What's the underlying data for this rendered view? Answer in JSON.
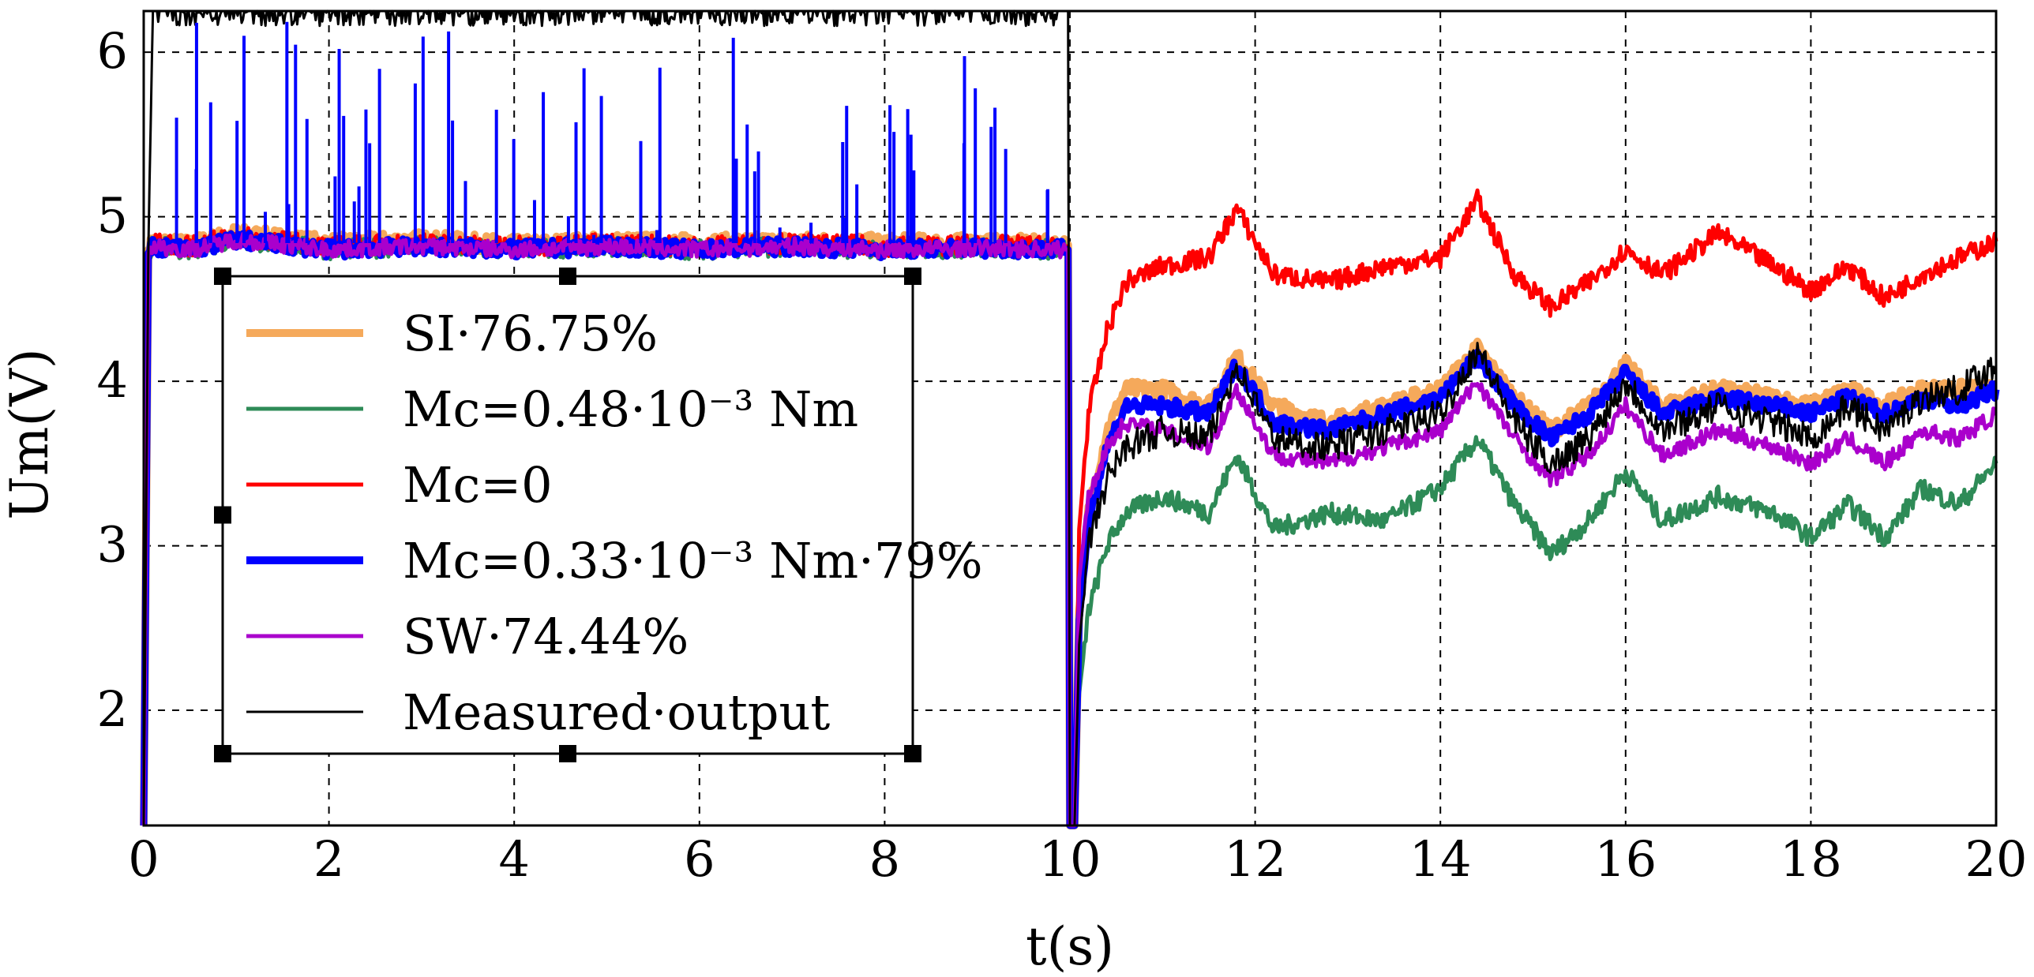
{
  "chart_data": {
    "type": "line",
    "title": "",
    "xlabel": "t(s)",
    "ylabel": "Um(V)",
    "xlim": [
      0,
      20
    ],
    "ylim": [
      1.3,
      6.25
    ],
    "grid": true,
    "x_ticks": [
      "0",
      "2",
      "4",
      "6",
      "8",
      "10",
      "12",
      "14",
      "16",
      "18",
      "20"
    ],
    "y_ticks": [
      "2",
      "3",
      "4",
      "5",
      "6"
    ],
    "legend_position": "center-left",
    "legend": [
      "SI·76.75%",
      "Mc=0.48·10⁻³ Nm",
      "Mc=0",
      "Mc=0.33·10⁻³ Nm·79%",
      "SW·74.44%",
      "Measured·output"
    ],
    "x": [
      0,
      0.05,
      0.1,
      0.5,
      1,
      2,
      3,
      4,
      5,
      6,
      7,
      8,
      9,
      9.98,
      10.0,
      10.05,
      10.1,
      10.2,
      10.4,
      10.6,
      11,
      11.5,
      11.8,
      12.2,
      12.8,
      13.4,
      14,
      14.4,
      14.8,
      15.2,
      15.6,
      16,
      16.4,
      17,
      17.6,
      18,
      18.4,
      18.8,
      19.2,
      19.6,
      20
    ],
    "series": [
      {
        "name": "SI·76.75%",
        "color": "#f5a95b",
        "values": [
          1.3,
          4.8,
          4.85,
          4.83,
          4.9,
          4.84,
          4.86,
          4.83,
          4.85,
          4.84,
          4.85,
          4.84,
          4.84,
          4.83,
          1.3,
          1.3,
          2.6,
          3.2,
          3.7,
          3.95,
          3.95,
          3.85,
          4.15,
          3.85,
          3.75,
          3.85,
          3.95,
          4.2,
          3.9,
          3.7,
          3.85,
          4.1,
          3.85,
          3.95,
          3.9,
          3.85,
          3.95,
          3.85,
          3.95,
          3.95,
          3.95
        ]
      },
      {
        "name": "Mc=0.48·10⁻³ Nm",
        "color": "#2e8b57",
        "values": [
          1.3,
          4.8,
          4.82,
          4.8,
          4.86,
          4.8,
          4.82,
          4.8,
          4.82,
          4.8,
          4.82,
          4.8,
          4.81,
          4.8,
          1.3,
          1.3,
          2.1,
          2.6,
          3.0,
          3.2,
          3.3,
          3.2,
          3.55,
          3.1,
          3.2,
          3.15,
          3.35,
          3.65,
          3.25,
          2.95,
          3.15,
          3.45,
          3.15,
          3.3,
          3.2,
          3.05,
          3.25,
          3.05,
          3.35,
          3.25,
          3.5
        ]
      },
      {
        "name": "Mc=0",
        "color": "#ff0000",
        "values": [
          1.3,
          4.8,
          4.84,
          4.82,
          4.88,
          4.82,
          4.84,
          4.82,
          4.84,
          4.82,
          4.84,
          4.82,
          4.83,
          4.82,
          1.3,
          1.3,
          3.1,
          3.8,
          4.3,
          4.6,
          4.7,
          4.75,
          5.05,
          4.65,
          4.6,
          4.7,
          4.75,
          5.1,
          4.65,
          4.45,
          4.6,
          4.8,
          4.65,
          4.9,
          4.7,
          4.55,
          4.7,
          4.5,
          4.65,
          4.75,
          4.85
        ]
      },
      {
        "name": "Mc=0.33·10⁻³ Nm·79%",
        "color": "#0000ff",
        "values": [
          1.3,
          4.78,
          4.82,
          4.8,
          4.86,
          4.8,
          4.82,
          4.8,
          4.82,
          4.8,
          4.82,
          4.8,
          4.81,
          4.8,
          1.3,
          1.3,
          2.55,
          3.15,
          3.6,
          3.85,
          3.85,
          3.8,
          4.1,
          3.75,
          3.7,
          3.8,
          3.9,
          4.15,
          3.85,
          3.65,
          3.8,
          4.05,
          3.8,
          3.9,
          3.85,
          3.8,
          3.9,
          3.8,
          3.9,
          3.85,
          3.95
        ]
      },
      {
        "name": "SW·74.44%",
        "color": "#aa00cc",
        "values": [
          1.3,
          4.78,
          4.82,
          4.8,
          4.86,
          4.8,
          4.82,
          4.8,
          4.82,
          4.8,
          4.82,
          4.8,
          4.81,
          4.8,
          1.3,
          1.3,
          2.8,
          3.3,
          3.6,
          3.75,
          3.7,
          3.6,
          3.95,
          3.55,
          3.5,
          3.6,
          3.7,
          4.0,
          3.65,
          3.4,
          3.55,
          3.85,
          3.55,
          3.7,
          3.6,
          3.5,
          3.65,
          3.5,
          3.7,
          3.65,
          3.8
        ]
      },
      {
        "name": "Measured·output",
        "color": "#000000",
        "values": [
          1.3,
          4.8,
          6.25,
          6.25,
          6.25,
          6.25,
          6.25,
          6.25,
          6.25,
          6.25,
          6.25,
          6.25,
          6.25,
          6.25,
          1.3,
          1.3,
          2.4,
          3.0,
          3.4,
          3.6,
          3.7,
          3.65,
          4.1,
          3.65,
          3.6,
          3.7,
          3.8,
          4.2,
          3.75,
          3.5,
          3.65,
          4.0,
          3.7,
          3.85,
          3.75,
          3.65,
          3.85,
          3.7,
          3.9,
          3.95,
          4.1
        ]
      }
    ]
  }
}
